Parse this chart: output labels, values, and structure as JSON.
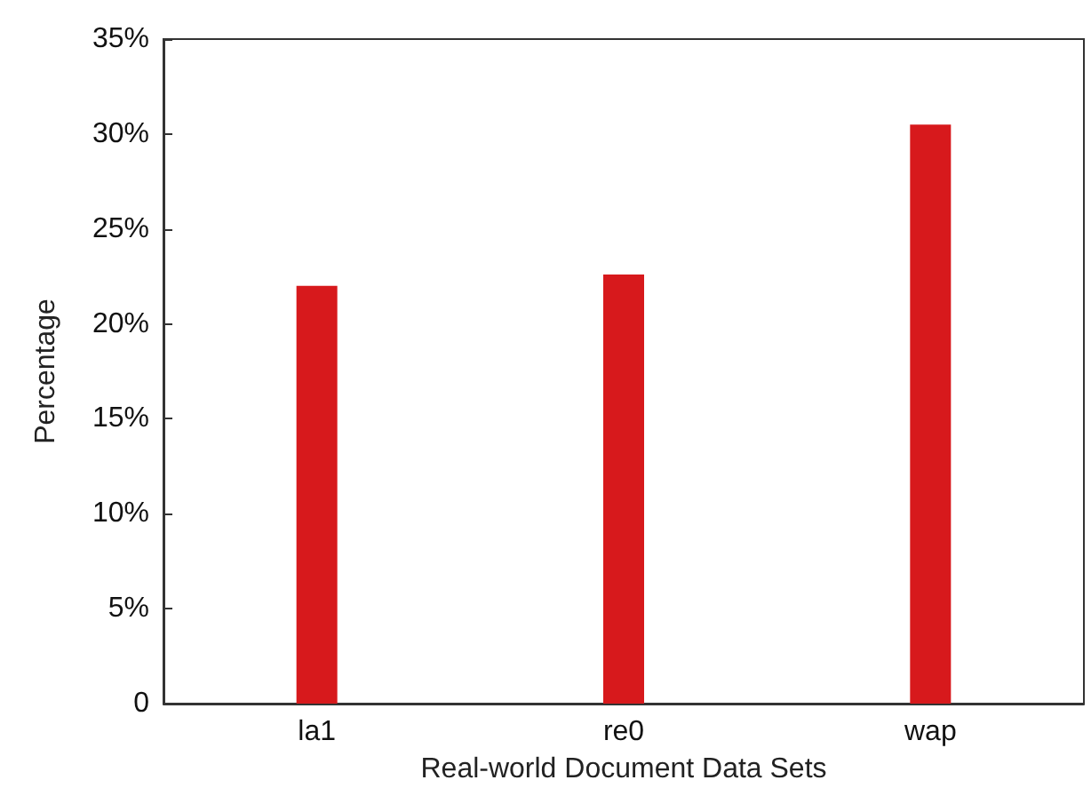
{
  "chart_data": {
    "type": "bar",
    "xlabel": "Real-world Document Data Sets",
    "ylabel": "Percentage",
    "categories": [
      "la1",
      "re0",
      "wap"
    ],
    "series": [
      {
        "color": "#d7191c",
        "values": [
          22,
          22.6,
          30.5
        ]
      }
    ],
    "ylim": [
      0,
      35
    ],
    "yticks": [
      {
        "value": 0,
        "label": "0"
      },
      {
        "value": 5,
        "label": "5%"
      },
      {
        "value": 10,
        "label": "10%"
      },
      {
        "value": 15,
        "label": "15%"
      },
      {
        "value": 20,
        "label": "20%"
      },
      {
        "value": 25,
        "label": "25%"
      },
      {
        "value": 30,
        "label": "30%"
      },
      {
        "value": 35,
        "label": "35%"
      }
    ],
    "grid": false
  }
}
